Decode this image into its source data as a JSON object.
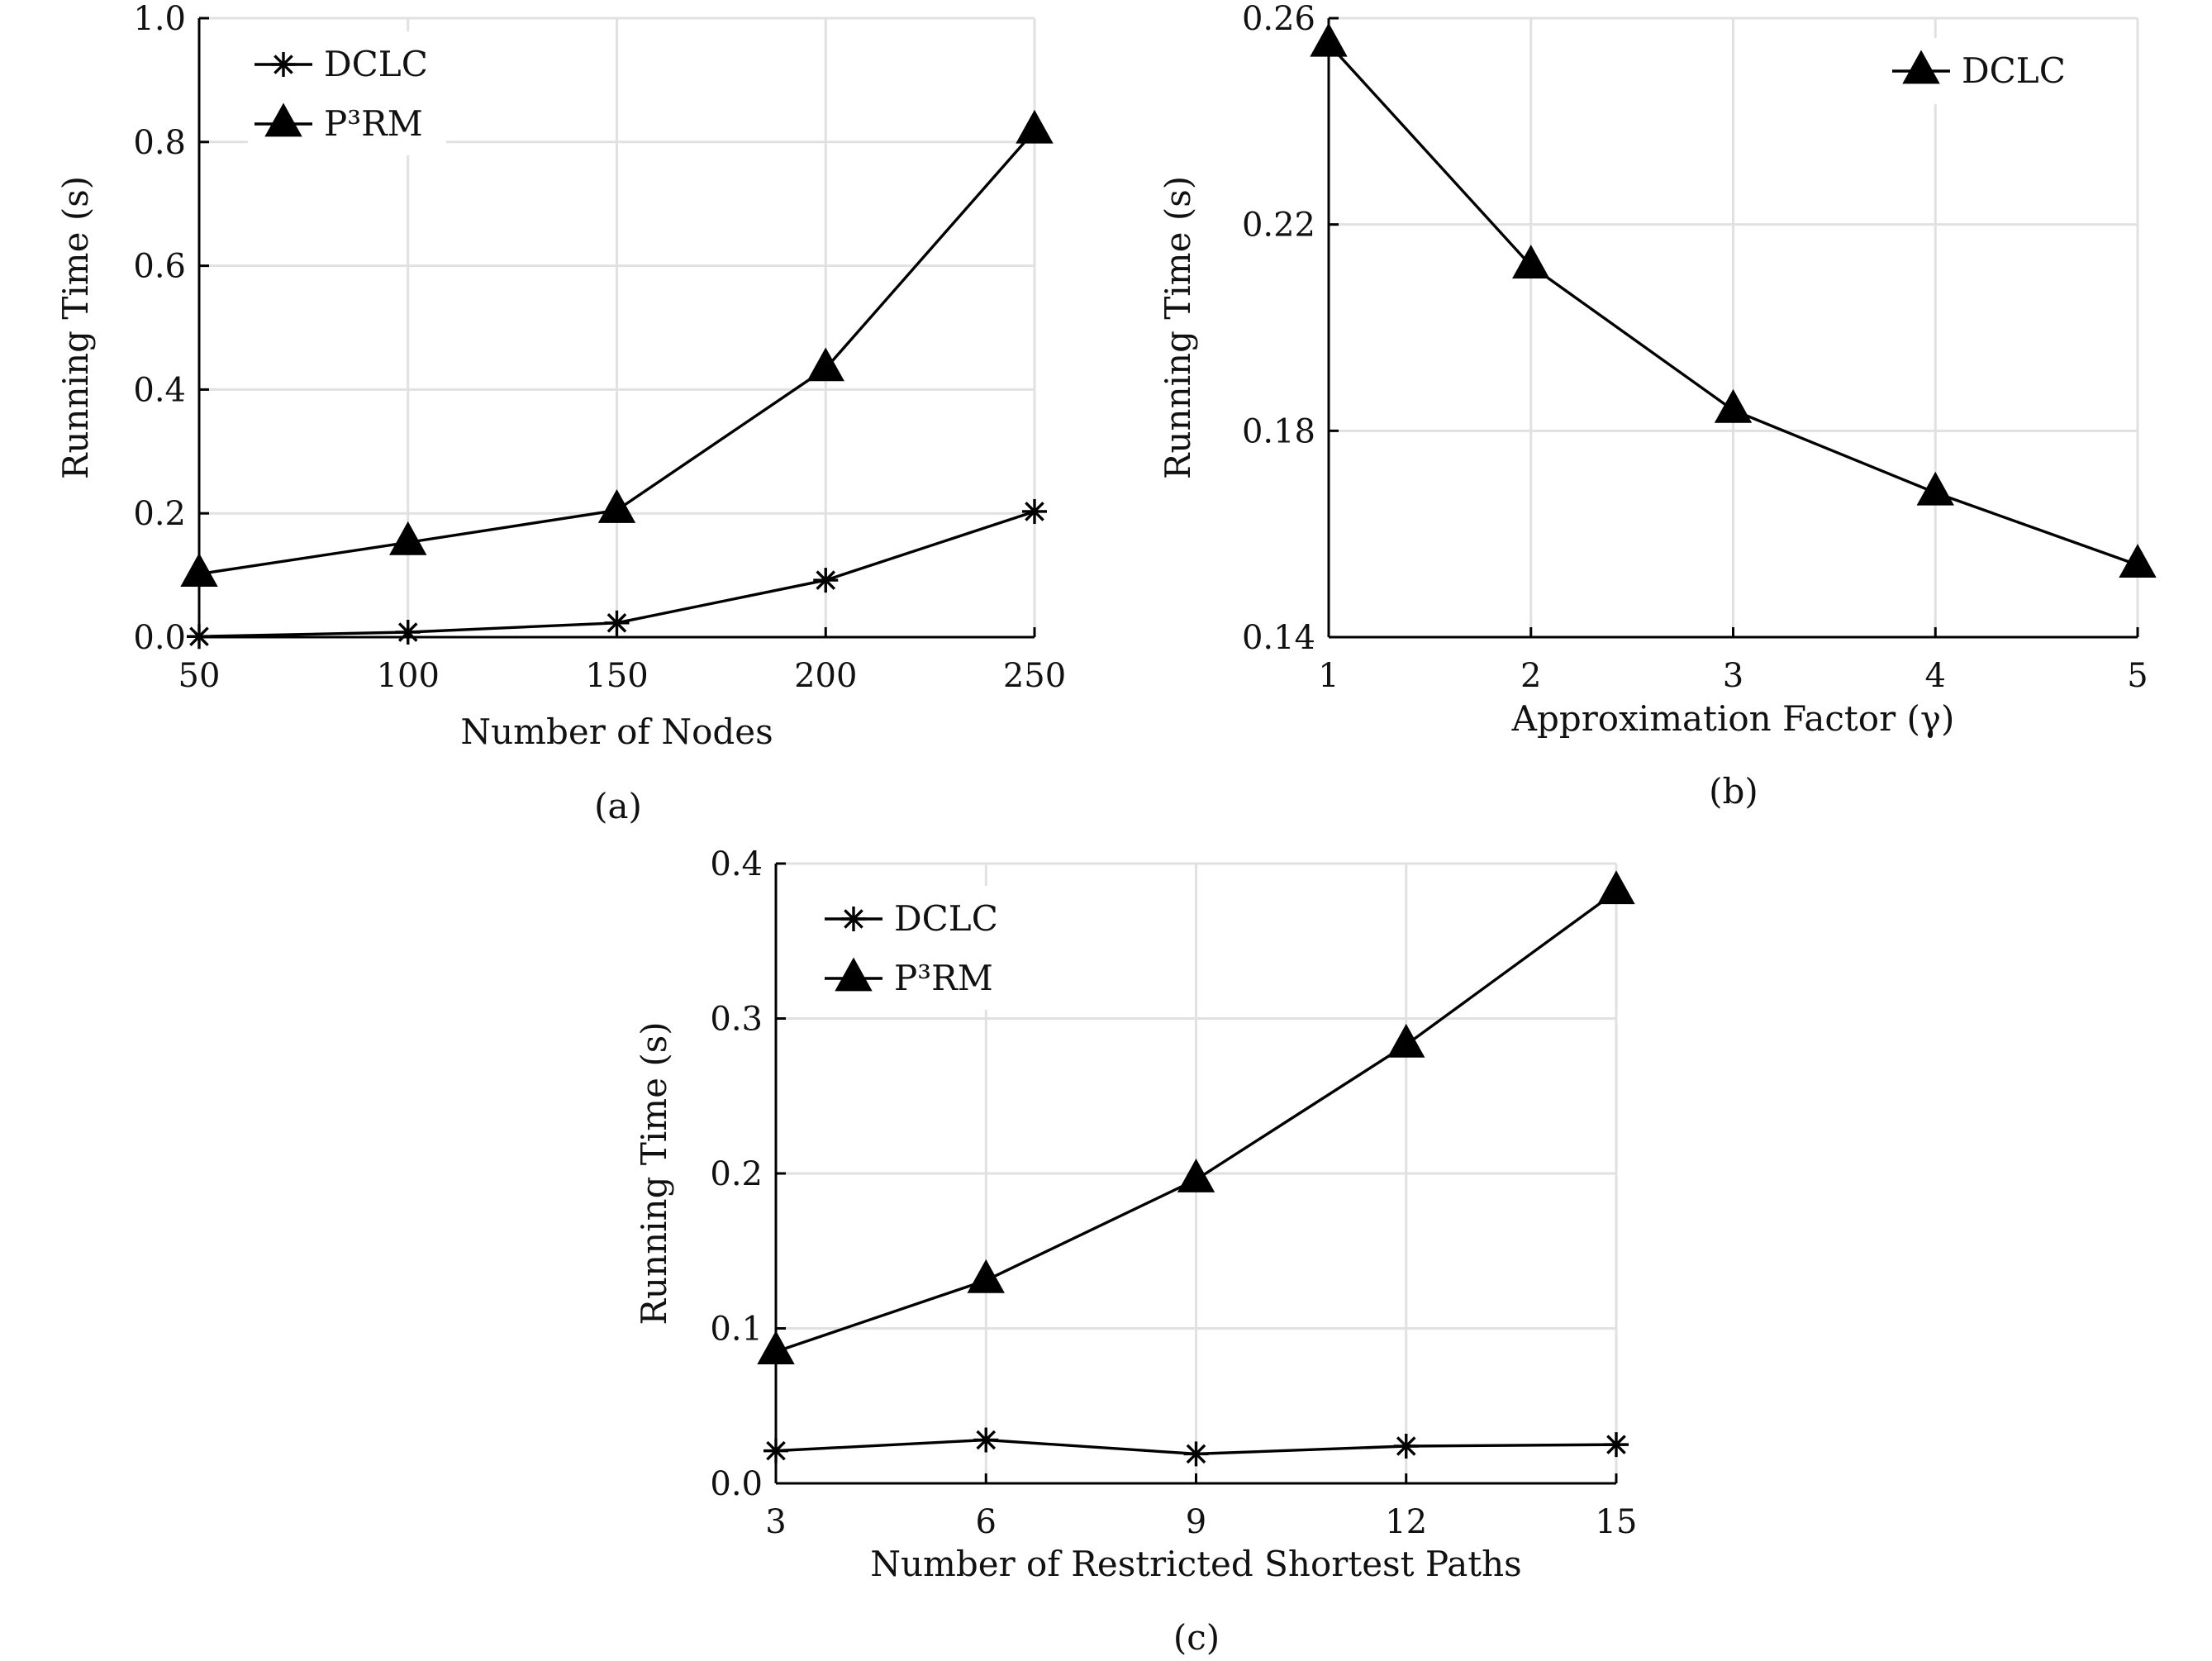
{
  "chart_data": [
    {
      "id": "a",
      "type": "line",
      "caption": "(a)",
      "xlabel": "Number of Nodes",
      "ylabel": "Running Time (s)",
      "x": [
        50,
        100,
        150,
        200,
        250
      ],
      "xticks": [
        "50",
        "100",
        "150",
        "200",
        "250"
      ],
      "xlim": [
        50,
        250
      ],
      "ylim": [
        0.0,
        1.0
      ],
      "yticks": [
        "0.0",
        "0.2",
        "0.4",
        "0.6",
        "0.8",
        "1.0"
      ],
      "yticks_values": [
        0.0,
        0.2,
        0.4,
        0.6,
        0.8,
        1.0
      ],
      "grid": true,
      "legend_position": "top-left",
      "series": [
        {
          "name": "DCLC",
          "marker": "asterisk",
          "values": [
            0.001,
            0.008,
            0.023,
            0.092,
            0.203
          ]
        },
        {
          "name": "P³RM",
          "marker": "triangle",
          "values": [
            0.102,
            0.153,
            0.205,
            0.434,
            0.818
          ]
        }
      ]
    },
    {
      "id": "b",
      "type": "line",
      "caption": "(b)",
      "xlabel": "Approximation Factor (γ)",
      "ylabel": "Running Time (s)",
      "x": [
        1,
        2,
        3,
        4,
        5
      ],
      "xticks": [
        "1",
        "2",
        "3",
        "4",
        "5"
      ],
      "xlim": [
        1,
        5
      ],
      "ylim": [
        0.14,
        0.26
      ],
      "yticks": [
        "0.14",
        "0.18",
        "0.22",
        "0.26"
      ],
      "yticks_values": [
        0.14,
        0.18,
        0.22,
        0.26
      ],
      "grid": true,
      "legend_position": "top-right",
      "series": [
        {
          "name": "DCLC",
          "marker": "triangle",
          "values": [
            0.255,
            0.212,
            0.184,
            0.168,
            0.154
          ]
        }
      ]
    },
    {
      "id": "c",
      "type": "line",
      "caption": "(c)",
      "xlabel": "Number of Restricted Shortest Paths",
      "ylabel": "Running Time (s)",
      "x": [
        3,
        6,
        9,
        12,
        15
      ],
      "xticks": [
        "3",
        "6",
        "9",
        "12",
        "15"
      ],
      "xlim": [
        3,
        15
      ],
      "ylim": [
        0.0,
        0.4
      ],
      "yticks": [
        "0.0",
        "0.1",
        "0.2",
        "0.3",
        "0.4"
      ],
      "yticks_values": [
        0.0,
        0.1,
        0.2,
        0.3,
        0.4
      ],
      "grid": true,
      "legend_position": "top-left",
      "series": [
        {
          "name": "DCLC",
          "marker": "asterisk",
          "values": [
            0.021,
            0.028,
            0.019,
            0.024,
            0.025
          ]
        },
        {
          "name": "P³RM",
          "marker": "triangle",
          "values": [
            0.085,
            0.131,
            0.196,
            0.283,
            0.382
          ]
        }
      ]
    }
  ]
}
